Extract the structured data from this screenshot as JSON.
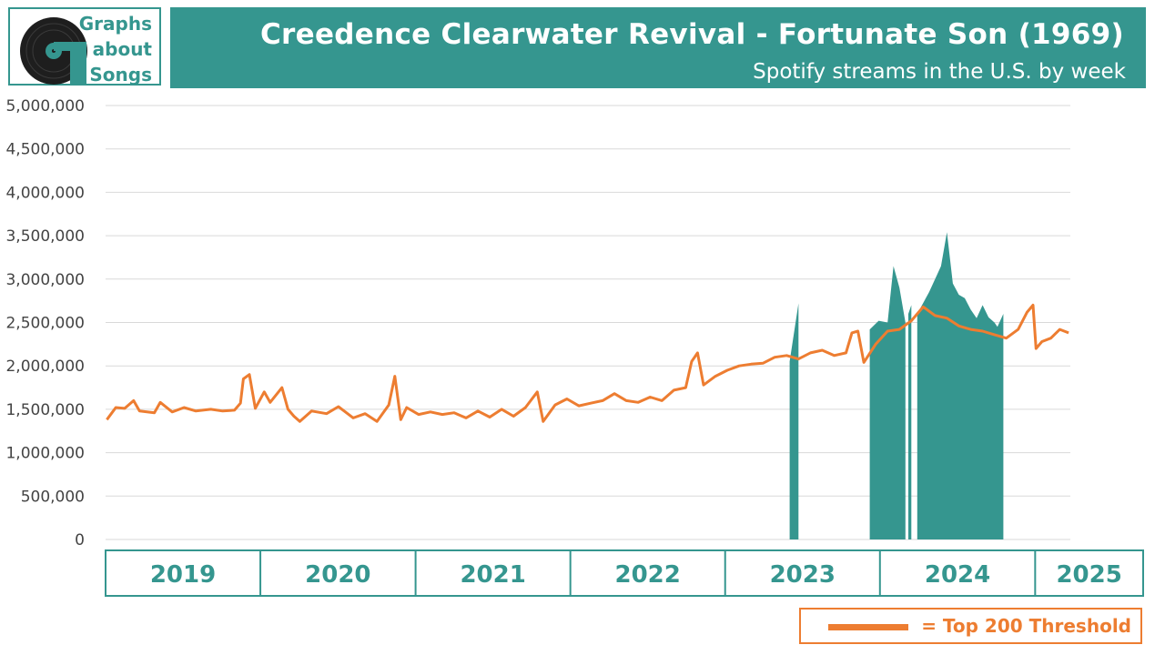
{
  "logo": {
    "line1": "Graphs",
    "line2": "about",
    "line3": "Songs",
    "icon": "vinyl-record-icon"
  },
  "header": {
    "title": "Creedence Clearwater Revival - Fortunate Son (1969)",
    "subtitle": "Spotify streams in the U.S. by week"
  },
  "legend": {
    "label": "= Top 200 Threshold"
  },
  "colors": {
    "accent": "#35968f",
    "threshold_line": "#ed7d31",
    "grid": "#d9d9d9"
  },
  "chart_data": {
    "type": "area",
    "ylim": [
      0,
      5000000
    ],
    "y_ticks": [
      "5,000,000",
      "4,500,000",
      "4,000,000",
      "3,500,000",
      "3,000,000",
      "2,500,000",
      "2,000,000",
      "1,500,000",
      "1,000,000",
      "500,000",
      "0"
    ],
    "x_year_labels": [
      "2019",
      "2020",
      "2021",
      "2022",
      "2023",
      "2024",
      "2025"
    ],
    "series": [
      {
        "name": "= Top 200 Threshold",
        "kind": "line",
        "points": [
          [
            "2019-01-04",
            1380000
          ],
          [
            "2019-01-25",
            1520000
          ],
          [
            "2019-02-15",
            1510000
          ],
          [
            "2019-03-08",
            1600000
          ],
          [
            "2019-03-22",
            1480000
          ],
          [
            "2019-04-26",
            1460000
          ],
          [
            "2019-05-10",
            1580000
          ],
          [
            "2019-06-07",
            1470000
          ],
          [
            "2019-07-05",
            1520000
          ],
          [
            "2019-08-02",
            1480000
          ],
          [
            "2019-09-06",
            1500000
          ],
          [
            "2019-10-04",
            1480000
          ],
          [
            "2019-11-01",
            1490000
          ],
          [
            "2019-11-15",
            1570000
          ],
          [
            "2019-11-22",
            1850000
          ],
          [
            "2019-12-06",
            1900000
          ],
          [
            "2019-12-20",
            1510000
          ],
          [
            "2020-01-10",
            1700000
          ],
          [
            "2020-01-24",
            1580000
          ],
          [
            "2020-02-21",
            1750000
          ],
          [
            "2020-03-06",
            1500000
          ],
          [
            "2020-03-20",
            1420000
          ],
          [
            "2020-04-03",
            1360000
          ],
          [
            "2020-05-01",
            1480000
          ],
          [
            "2020-06-05",
            1450000
          ],
          [
            "2020-07-03",
            1530000
          ],
          [
            "2020-08-07",
            1400000
          ],
          [
            "2020-09-04",
            1450000
          ],
          [
            "2020-10-02",
            1360000
          ],
          [
            "2020-10-30",
            1550000
          ],
          [
            "2020-11-13",
            1880000
          ],
          [
            "2020-11-27",
            1380000
          ],
          [
            "2020-12-11",
            1520000
          ],
          [
            "2021-01-08",
            1440000
          ],
          [
            "2021-02-05",
            1470000
          ],
          [
            "2021-03-05",
            1440000
          ],
          [
            "2021-04-02",
            1460000
          ],
          [
            "2021-04-30",
            1400000
          ],
          [
            "2021-05-28",
            1480000
          ],
          [
            "2021-06-25",
            1410000
          ],
          [
            "2021-07-23",
            1500000
          ],
          [
            "2021-08-20",
            1420000
          ],
          [
            "2021-09-17",
            1520000
          ],
          [
            "2021-10-15",
            1700000
          ],
          [
            "2021-10-29",
            1360000
          ],
          [
            "2021-11-26",
            1550000
          ],
          [
            "2021-12-24",
            1620000
          ],
          [
            "2022-01-21",
            1540000
          ],
          [
            "2022-02-18",
            1570000
          ],
          [
            "2022-03-18",
            1600000
          ],
          [
            "2022-04-15",
            1680000
          ],
          [
            "2022-05-13",
            1600000
          ],
          [
            "2022-06-10",
            1580000
          ],
          [
            "2022-07-08",
            1640000
          ],
          [
            "2022-08-05",
            1600000
          ],
          [
            "2022-09-02",
            1720000
          ],
          [
            "2022-09-30",
            1750000
          ],
          [
            "2022-10-14",
            2050000
          ],
          [
            "2022-10-28",
            2150000
          ],
          [
            "2022-11-11",
            1780000
          ],
          [
            "2022-12-09",
            1880000
          ],
          [
            "2023-01-06",
            1950000
          ],
          [
            "2023-02-03",
            2000000
          ],
          [
            "2023-03-03",
            2020000
          ],
          [
            "2023-03-31",
            2030000
          ],
          [
            "2023-04-28",
            2100000
          ],
          [
            "2023-05-26",
            2120000
          ],
          [
            "2023-06-23",
            2080000
          ],
          [
            "2023-07-21",
            2150000
          ],
          [
            "2023-08-18",
            2180000
          ],
          [
            "2023-09-15",
            2120000
          ],
          [
            "2023-10-13",
            2150000
          ],
          [
            "2023-10-27",
            2380000
          ],
          [
            "2023-11-10",
            2400000
          ],
          [
            "2023-11-24",
            2040000
          ],
          [
            "2023-12-22",
            2250000
          ],
          [
            "2024-01-19",
            2400000
          ],
          [
            "2024-02-16",
            2420000
          ],
          [
            "2024-03-15",
            2520000
          ],
          [
            "2024-04-12",
            2680000
          ],
          [
            "2024-05-10",
            2580000
          ],
          [
            "2024-06-07",
            2550000
          ],
          [
            "2024-07-05",
            2460000
          ],
          [
            "2024-08-02",
            2420000
          ],
          [
            "2024-08-30",
            2400000
          ],
          [
            "2024-09-27",
            2360000
          ],
          [
            "2024-10-25",
            2320000
          ],
          [
            "2024-11-22",
            2420000
          ],
          [
            "2024-12-13",
            2620000
          ],
          [
            "2024-12-27",
            2700000
          ],
          [
            "2025-01-03",
            2200000
          ],
          [
            "2025-01-17",
            2280000
          ],
          [
            "2025-02-07",
            2320000
          ],
          [
            "2025-02-28",
            2420000
          ],
          [
            "2025-03-21",
            2380000
          ]
        ]
      },
      {
        "name": "",
        "kind": "area",
        "segments": [
          [
            [
              "2023-06-02",
              0
            ],
            [
              "2023-06-02",
              2050000
            ],
            [
              "2023-06-23",
              2720000
            ],
            [
              "2023-06-23",
              0
            ]
          ],
          [
            [
              "2023-12-08",
              0
            ],
            [
              "2023-12-08",
              2420000
            ],
            [
              "2023-12-29",
              2520000
            ],
            [
              "2024-01-19",
              2500000
            ],
            [
              "2024-02-02",
              3150000
            ],
            [
              "2024-02-16",
              2900000
            ],
            [
              "2024-02-23",
              2700000
            ],
            [
              "2024-03-01",
              2500000
            ],
            [
              "2024-03-01",
              0
            ]
          ],
          [
            [
              "2024-03-08",
              0
            ],
            [
              "2024-03-08",
              2600000
            ],
            [
              "2024-03-15",
              2700000
            ],
            [
              "2024-03-15",
              0
            ]
          ],
          [
            [
              "2024-03-29",
              0
            ],
            [
              "2024-03-29",
              2600000
            ],
            [
              "2024-04-26",
              2850000
            ],
            [
              "2024-05-10",
              3000000
            ],
            [
              "2024-05-24",
              3150000
            ],
            [
              "2024-06-07",
              3540000
            ],
            [
              "2024-06-21",
              2950000
            ],
            [
              "2024-07-05",
              2820000
            ],
            [
              "2024-07-19",
              2780000
            ],
            [
              "2024-08-02",
              2650000
            ],
            [
              "2024-08-16",
              2550000
            ],
            [
              "2024-08-30",
              2700000
            ],
            [
              "2024-09-13",
              2560000
            ],
            [
              "2024-09-27",
              2500000
            ],
            [
              "2024-10-04",
              2450000
            ],
            [
              "2024-10-18",
              2600000
            ],
            [
              "2024-10-18",
              0
            ]
          ]
        ]
      }
    ]
  }
}
